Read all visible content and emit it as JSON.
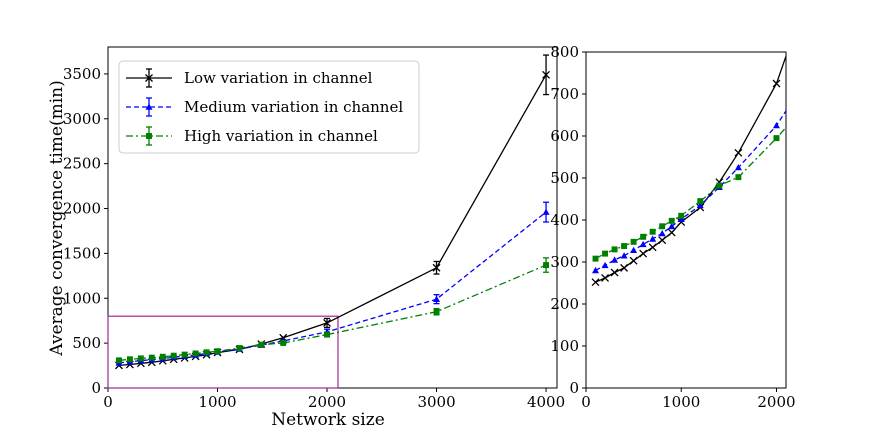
{
  "chart_data": [
    {
      "type": "line",
      "panel": "main",
      "xlabel": "Network size",
      "ylabel": "Average convergence time(min)",
      "xlim": [
        0,
        4100
      ],
      "ylim": [
        0,
        3800
      ],
      "xticks": [
        0,
        1000,
        2000,
        3000,
        4000
      ],
      "xtick_labels": [
        "0",
        "1000",
        "2000",
        "3000",
        "4000"
      ],
      "yticks": [
        0,
        500,
        1000,
        1500,
        2000,
        2500,
        3000,
        3500
      ],
      "ytick_labels": [
        "0",
        "500",
        "1000",
        "1500",
        "2000",
        "2500",
        "3000",
        "3500"
      ],
      "legend_position": "top-left",
      "zoom_region": {
        "x": [
          0,
          2100
        ],
        "y": [
          0,
          800
        ]
      },
      "series": [
        {
          "name": "Low variation in channel",
          "color": "#000000",
          "marker": "x",
          "linestyle": "solid",
          "x": [
            100,
            200,
            300,
            400,
            500,
            600,
            700,
            800,
            900,
            1000,
            1200,
            1400,
            1600,
            2000,
            3000,
            4000
          ],
          "y": [
            252,
            262,
            275,
            286,
            303,
            320,
            335,
            352,
            370,
            395,
            430,
            490,
            560,
            725,
            1340,
            3490
          ],
          "yerr": [
            null,
            null,
            null,
            null,
            null,
            null,
            null,
            null,
            null,
            null,
            null,
            null,
            null,
            50,
            70,
            220
          ]
        },
        {
          "name": "Medium variation in channel",
          "color": "#0000ff",
          "marker": "triangle",
          "linestyle": "dashed",
          "x": [
            100,
            200,
            300,
            400,
            500,
            600,
            700,
            800,
            900,
            1000,
            1200,
            1400,
            1600,
            2000,
            3000,
            4000
          ],
          "y": [
            280,
            292,
            305,
            315,
            328,
            342,
            355,
            368,
            385,
            402,
            435,
            478,
            525,
            625,
            990,
            1960
          ],
          "yerr": [
            null,
            null,
            null,
            null,
            null,
            null,
            null,
            null,
            null,
            null,
            null,
            null,
            null,
            30,
            50,
            110
          ]
        },
        {
          "name": "High variation in channel",
          "color": "#008000",
          "marker": "square",
          "linestyle": "dashdot",
          "x": [
            100,
            200,
            300,
            400,
            500,
            600,
            700,
            800,
            900,
            1000,
            1200,
            1400,
            1600,
            2000,
            3000,
            4000
          ],
          "y": [
            308,
            320,
            330,
            338,
            348,
            360,
            372,
            385,
            398,
            410,
            445,
            482,
            502,
            595,
            850,
            1370
          ],
          "yerr": [
            null,
            null,
            null,
            null,
            null,
            null,
            null,
            null,
            null,
            null,
            null,
            null,
            null,
            25,
            35,
            80
          ]
        }
      ]
    },
    {
      "type": "line",
      "panel": "inset",
      "xlabel": "",
      "ylabel": "",
      "xlim": [
        0,
        2100
      ],
      "ylim": [
        0,
        800
      ],
      "xticks": [
        0,
        1000,
        2000
      ],
      "xtick_labels": [
        "0",
        "1000",
        "2000"
      ],
      "yticks": [
        0,
        100,
        200,
        300,
        400,
        500,
        600,
        700,
        800
      ],
      "ytick_labels": [
        "0",
        "100",
        "200",
        "300",
        "400",
        "500",
        "600",
        "700",
        "800"
      ],
      "series": [
        {
          "name": "Low variation in channel",
          "color": "#000000",
          "marker": "x",
          "linestyle": "solid",
          "x": [
            100,
            200,
            300,
            400,
            500,
            600,
            700,
            800,
            900,
            1000,
            1200,
            1400,
            1600,
            2000
          ],
          "y": [
            252,
            262,
            275,
            286,
            303,
            320,
            335,
            352,
            370,
            395,
            430,
            490,
            560,
            725
          ],
          "line_end": [
            2100,
            790
          ]
        },
        {
          "name": "Medium variation in channel",
          "color": "#0000ff",
          "marker": "triangle",
          "linestyle": "dashed",
          "x": [
            100,
            200,
            300,
            400,
            500,
            600,
            700,
            800,
            900,
            1000,
            1200,
            1400,
            1600,
            2000
          ],
          "y": [
            280,
            292,
            305,
            315,
            328,
            342,
            355,
            368,
            385,
            402,
            435,
            478,
            525,
            625
          ],
          "line_end": [
            2100,
            660
          ]
        },
        {
          "name": "High variation in channel",
          "color": "#008000",
          "marker": "square",
          "linestyle": "dashdot",
          "x": [
            100,
            200,
            300,
            400,
            500,
            600,
            700,
            800,
            900,
            1000,
            1200,
            1400,
            1600,
            2000
          ],
          "y": [
            308,
            320,
            330,
            338,
            348,
            360,
            372,
            385,
            398,
            410,
            445,
            482,
            502,
            595
          ],
          "line_end": [
            2100,
            620
          ]
        }
      ]
    }
  ]
}
